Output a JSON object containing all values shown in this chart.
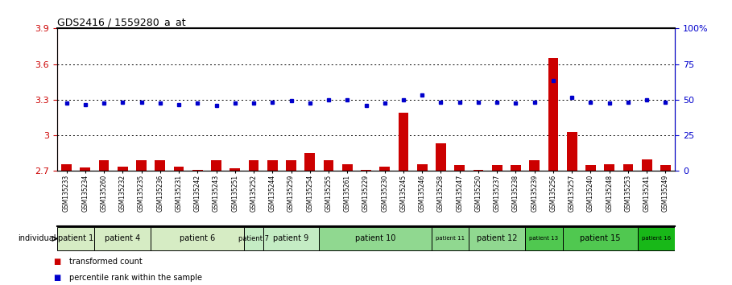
{
  "title": "GDS2416 / 1559280_a_at",
  "samples": [
    "GSM135233",
    "GSM135234",
    "GSM135260",
    "GSM135232",
    "GSM135235",
    "GSM135236",
    "GSM135231",
    "GSM135242",
    "GSM135243",
    "GSM135251",
    "GSM135252",
    "GSM135244",
    "GSM135259",
    "GSM135254",
    "GSM135255",
    "GSM135261",
    "GSM135229",
    "GSM135230",
    "GSM135245",
    "GSM135246",
    "GSM135258",
    "GSM135247",
    "GSM135250",
    "GSM135237",
    "GSM135238",
    "GSM135239",
    "GSM135256",
    "GSM135257",
    "GSM135240",
    "GSM135248",
    "GSM135253",
    "GSM135241",
    "GSM135249"
  ],
  "red_values": [
    2.76,
    2.73,
    2.79,
    2.74,
    2.79,
    2.79,
    2.74,
    2.71,
    2.79,
    2.72,
    2.79,
    2.79,
    2.79,
    2.85,
    2.79,
    2.76,
    2.71,
    2.74,
    3.19,
    2.76,
    2.93,
    2.75,
    2.71,
    2.75,
    2.75,
    2.79,
    3.65,
    3.03,
    2.75,
    2.76,
    2.76,
    2.8,
    2.75
  ],
  "blue_values": [
    3.27,
    3.26,
    3.27,
    3.28,
    3.28,
    3.27,
    3.26,
    3.27,
    3.25,
    3.27,
    3.27,
    3.28,
    3.29,
    3.27,
    3.3,
    3.3,
    3.25,
    3.27,
    3.3,
    3.34,
    3.28,
    3.28,
    3.28,
    3.28,
    3.27,
    3.28,
    3.46,
    3.32,
    3.28,
    3.27,
    3.28,
    3.3,
    3.28
  ],
  "ylim_left": [
    2.7,
    3.9
  ],
  "ylim_right": [
    0,
    100
  ],
  "yticks_left": [
    2.7,
    3.0,
    3.3,
    3.6,
    3.9
  ],
  "yticks_right": [
    0,
    25,
    50,
    75,
    100
  ],
  "ytick_labels_left": [
    "2.7",
    "3",
    "3.3",
    "3.6",
    "3.9"
  ],
  "ytick_labels_right": [
    "0",
    "25",
    "50",
    "75",
    "100%"
  ],
  "grid_lines": [
    3.0,
    3.3,
    3.6
  ],
  "patient_groups": [
    {
      "label": "patient 1",
      "start": 0,
      "end": 2,
      "color": "#d6ecc4",
      "fontsize": 7
    },
    {
      "label": "patient 4",
      "start": 2,
      "end": 5,
      "color": "#d6ecc4",
      "fontsize": 7
    },
    {
      "label": "patient 6",
      "start": 5,
      "end": 10,
      "color": "#d6ecc4",
      "fontsize": 7
    },
    {
      "label": "patient 7",
      "start": 10,
      "end": 11,
      "color": "#c4ecc4",
      "fontsize": 6
    },
    {
      "label": "patient 9",
      "start": 11,
      "end": 14,
      "color": "#c4ecc4",
      "fontsize": 7
    },
    {
      "label": "patient 10",
      "start": 14,
      "end": 20,
      "color": "#90d890",
      "fontsize": 7
    },
    {
      "label": "patient 11",
      "start": 20,
      "end": 22,
      "color": "#90d890",
      "fontsize": 5
    },
    {
      "label": "patient 12",
      "start": 22,
      "end": 25,
      "color": "#90d890",
      "fontsize": 7
    },
    {
      "label": "patient 13",
      "start": 25,
      "end": 27,
      "color": "#50c850",
      "fontsize": 5
    },
    {
      "label": "patient 15",
      "start": 27,
      "end": 31,
      "color": "#50c850",
      "fontsize": 7
    },
    {
      "label": "patient 16",
      "start": 31,
      "end": 33,
      "color": "#18b818",
      "fontsize": 5
    }
  ],
  "bar_color": "#cc0000",
  "dot_color": "#0000cc",
  "bg_color": "#ffffff"
}
